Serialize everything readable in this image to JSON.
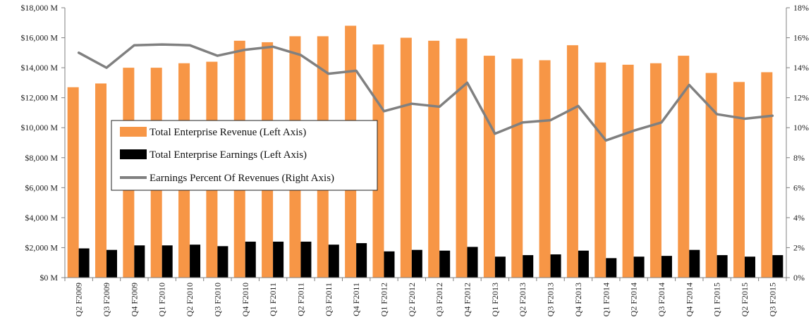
{
  "colors": {
    "revenue": "#F79646",
    "earnings": "#000000",
    "percent_line": "#808080",
    "grid": "#d9d9d9",
    "axis": "#7f7f7f"
  },
  "chart_data": {
    "type": "bar",
    "title": "",
    "xlabel": "",
    "ylabel": "",
    "categories": [
      "Q2 F2009",
      "Q3 F2009",
      "Q4 F2009",
      "Q1 F2010",
      "Q2 F2010",
      "Q3 F2010",
      "Q4 F2010",
      "Q1 F2011",
      "Q2 F2011",
      "Q3 F2011",
      "Q4 F2011",
      "Q1 F2012",
      "Q2 F2012",
      "Q3 F2012",
      "Q4 F2012",
      "Q1 F2013",
      "Q2 F2013",
      "Q3 F2013",
      "Q4 F2013",
      "Q1 F2014",
      "Q2 F2014",
      "Q3 F2014",
      "Q4 F2014",
      "Q1 F2015",
      "Q2 F2015",
      "Q3 F2015"
    ],
    "series": [
      {
        "name": "Total Enterprise Revenue (Left Axis)",
        "kind": "bar",
        "axis": "left",
        "values": [
          12700,
          12950,
          14000,
          14000,
          14300,
          14400,
          15800,
          15700,
          16100,
          16100,
          16800,
          15550,
          16000,
          15800,
          15950,
          14800,
          14600,
          14500,
          15500,
          14350,
          14200,
          14300,
          14800,
          13650,
          13050,
          13700
        ]
      },
      {
        "name": "Total Enterprise Earnings (Left Axis)",
        "kind": "bar",
        "axis": "left",
        "values": [
          1950,
          1850,
          2150,
          2150,
          2200,
          2100,
          2400,
          2400,
          2400,
          2200,
          2300,
          1750,
          1850,
          1800,
          2050,
          1400,
          1500,
          1550,
          1800,
          1300,
          1400,
          1450,
          1850,
          1500,
          1400,
          1500
        ]
      },
      {
        "name": "Earnings Percent Of Revenues (Right Axis)",
        "kind": "line",
        "axis": "right",
        "values": [
          15.0,
          14.0,
          15.5,
          15.55,
          15.5,
          14.8,
          15.2,
          15.4,
          14.85,
          13.6,
          13.8,
          11.1,
          11.6,
          11.4,
          13.0,
          9.6,
          10.35,
          10.5,
          11.45,
          9.15,
          9.8,
          10.35,
          12.85,
          10.9,
          10.6,
          10.8
        ]
      }
    ],
    "left_axis": {
      "ylim": [
        0,
        18000
      ],
      "ticks": [
        0,
        2000,
        4000,
        6000,
        8000,
        10000,
        12000,
        14000,
        16000,
        18000
      ],
      "tick_labels": [
        "$0 M",
        "$2,000 M",
        "$4,000 M",
        "$6,000 M",
        "$8,000 M",
        "$10,000 M",
        "$12,000 M",
        "$14,000 M",
        "$16,000 M",
        "$18,000 M"
      ]
    },
    "right_axis": {
      "ylim": [
        0,
        18
      ],
      "ticks": [
        0,
        2,
        4,
        6,
        8,
        10,
        12,
        14,
        16,
        18
      ],
      "tick_labels": [
        "0%",
        "2%",
        "4%",
        "6%",
        "8%",
        "10%",
        "12%",
        "14%",
        "16%",
        "18%"
      ]
    },
    "grid": false,
    "legend_position": "center-left"
  }
}
